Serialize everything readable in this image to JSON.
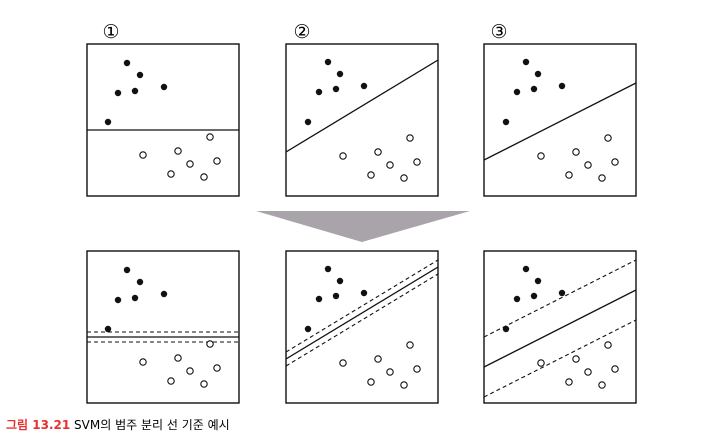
{
  "panel_numbers": [
    "①",
    "②",
    "③"
  ],
  "caption": {
    "label": "그림 13.21",
    "text": "SVM의 범주 분리 선 기준 예시",
    "label_color": "#e8302f"
  },
  "colors": {
    "frame": "#111111",
    "dot": "#111111",
    "arrow": "#a9a3aa"
  }
}
